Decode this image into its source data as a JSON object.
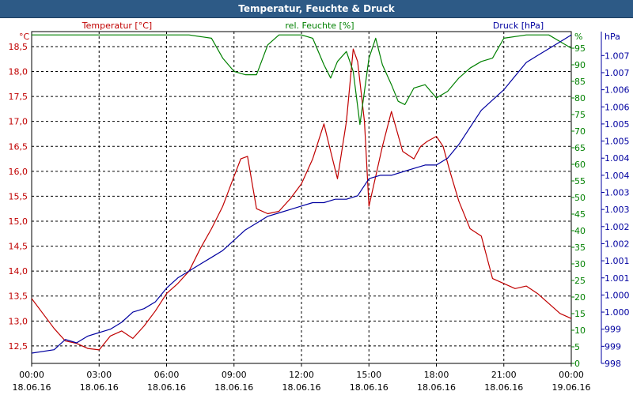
{
  "window": {
    "title": "Temperatur, Feuchte & Druck"
  },
  "colors": {
    "temp": "#c00000",
    "hum": "#008000",
    "press": "#0000a0",
    "grid": "#000000",
    "titlebar": "#2d5a86"
  },
  "chart_data": {
    "type": "line",
    "title": "Temperatur, Feuchte & Druck",
    "grid": true,
    "x_ticks": [
      {
        "time": "00:00",
        "date": "18.06.16"
      },
      {
        "time": "03:00",
        "date": "18.06.16"
      },
      {
        "time": "06:00",
        "date": "18.06.16"
      },
      {
        "time": "09:00",
        "date": "18.06.16"
      },
      {
        "time": "12:00",
        "date": "18.06.16"
      },
      {
        "time": "15:00",
        "date": "18.06.16"
      },
      {
        "time": "18:00",
        "date": "18.06.16"
      },
      {
        "time": "21:00",
        "date": "18.06.16"
      },
      {
        "time": "00:00",
        "date": "19.06.16"
      }
    ],
    "x_range_hours": [
      0,
      24
    ],
    "axes": {
      "temp": {
        "label": "Temperatur [°C]",
        "unit": "°C",
        "range": [
          12.15,
          18.8
        ],
        "ticks": [
          "12,5",
          "13,0",
          "13,5",
          "14,0",
          "14,5",
          "15,0",
          "15,5",
          "16,0",
          "16,5",
          "17,0",
          "17,5",
          "18,0",
          "18,5"
        ],
        "tick_values": [
          12.5,
          13.0,
          13.5,
          14.0,
          14.5,
          15.0,
          15.5,
          16.0,
          16.5,
          17.0,
          17.5,
          18.0,
          18.5
        ]
      },
      "hum": {
        "label": "rel. Feuchte [%]",
        "unit": "%",
        "range": [
          0,
          100
        ],
        "ticks": [
          "0",
          "5",
          "10",
          "15",
          "20",
          "25",
          "30",
          "35",
          "40",
          "45",
          "50",
          "55",
          "60",
          "65",
          "70",
          "75",
          "80",
          "85",
          "90",
          "95"
        ],
        "tick_values": [
          0,
          5,
          10,
          15,
          20,
          25,
          30,
          35,
          40,
          45,
          50,
          55,
          60,
          65,
          70,
          75,
          80,
          85,
          90,
          95
        ]
      },
      "press": {
        "label": "Druck [hPa]",
        "unit": "hPa",
        "range": [
          998.0,
          1007.7
        ],
        "ticks": [
          "998",
          "999",
          "999",
          "1.000",
          "1.000",
          "1.001",
          "1.001",
          "1.002",
          "1.002",
          "1.003",
          "1.003",
          "1.004",
          "1.004",
          "1.005",
          "1.005",
          "1.006",
          "1.006",
          "1.007",
          "1.007"
        ],
        "tick_values": [
          998.0,
          998.5,
          999.0,
          999.5,
          1000.0,
          1000.5,
          1001.0,
          1001.5,
          1002.0,
          1002.5,
          1003.0,
          1003.5,
          1004.0,
          1004.5,
          1005.0,
          1005.5,
          1006.0,
          1006.5,
          1007.0
        ]
      }
    },
    "series": [
      {
        "name": "Temperatur [°C]",
        "axis": "temp",
        "x": [
          0,
          0.5,
          1.0,
          1.5,
          2.0,
          2.5,
          3.0,
          3.5,
          4.0,
          4.5,
          5.0,
          5.5,
          6.0,
          6.5,
          7.0,
          7.5,
          8.0,
          8.5,
          9.0,
          9.3,
          9.6,
          10.0,
          10.5,
          11.0,
          11.5,
          12.0,
          12.5,
          13.0,
          13.3,
          13.6,
          14.0,
          14.3,
          14.5,
          14.8,
          15.0,
          15.3,
          15.6,
          16.0,
          16.5,
          17.0,
          17.3,
          17.6,
          18.0,
          18.3,
          18.6,
          19.0,
          19.5,
          20.0,
          20.5,
          21.0,
          21.5,
          22.0,
          22.5,
          23.0,
          23.5,
          24.0
        ],
        "values": [
          13.45,
          13.15,
          12.85,
          12.6,
          12.55,
          12.45,
          12.42,
          12.7,
          12.8,
          12.65,
          12.9,
          13.2,
          13.55,
          13.75,
          14.0,
          14.45,
          14.85,
          15.3,
          15.9,
          16.25,
          16.3,
          15.25,
          15.15,
          15.2,
          15.45,
          15.75,
          16.25,
          16.95,
          16.4,
          15.85,
          17.0,
          18.45,
          18.2,
          17.0,
          15.3,
          15.9,
          16.5,
          17.2,
          16.4,
          16.25,
          16.5,
          16.6,
          16.7,
          16.5,
          16.0,
          15.4,
          14.85,
          14.7,
          13.85,
          13.75,
          13.65,
          13.7,
          13.55,
          13.35,
          13.15,
          13.05
        ]
      },
      {
        "name": "rel. Feuchte [%]",
        "axis": "hum",
        "x": [
          0,
          1.0,
          2.0,
          3.0,
          4.0,
          5.0,
          6.0,
          7.0,
          8.0,
          8.5,
          9.0,
          9.5,
          10.0,
          10.5,
          11.0,
          11.5,
          12.0,
          12.5,
          13.0,
          13.3,
          13.6,
          14.0,
          14.3,
          14.6,
          15.0,
          15.3,
          15.6,
          16.0,
          16.3,
          16.6,
          17.0,
          17.5,
          18.0,
          18.5,
          19.0,
          19.5,
          20.0,
          20.5,
          21.0,
          22.0,
          23.0,
          23.5,
          24.0
        ],
        "values": [
          99,
          99,
          99,
          99,
          99,
          99,
          99,
          99,
          98,
          92,
          88,
          87,
          87,
          96,
          99,
          99,
          99,
          98,
          90,
          86,
          91,
          94,
          88,
          72,
          92,
          98,
          90,
          84,
          79,
          78,
          83,
          84,
          80,
          82,
          86,
          89,
          91,
          92,
          98,
          99,
          99,
          97,
          95
        ]
      },
      {
        "name": "Druck [hPa]",
        "axis": "press",
        "x": [
          0,
          1.0,
          1.5,
          2.0,
          2.5,
          3.0,
          3.5,
          4.0,
          4.5,
          5.0,
          5.5,
          6.0,
          6.5,
          7.0,
          7.5,
          8.0,
          8.5,
          9.0,
          9.5,
          10.0,
          10.5,
          11.0,
          11.5,
          12.0,
          12.5,
          13.0,
          13.5,
          14.0,
          14.5,
          15.0,
          15.5,
          16.0,
          16.5,
          17.0,
          17.5,
          18.0,
          18.5,
          19.0,
          19.5,
          20.0,
          20.5,
          21.0,
          21.5,
          22.0,
          22.5,
          23.0,
          23.5,
          24.0
        ],
        "values": [
          998.3,
          998.4,
          998.7,
          998.6,
          998.8,
          998.9,
          999.0,
          999.2,
          999.5,
          999.6,
          999.8,
          1000.2,
          1000.5,
          1000.7,
          1000.9,
          1001.1,
          1001.3,
          1001.6,
          1001.9,
          1002.1,
          1002.3,
          1002.4,
          1002.5,
          1002.6,
          1002.7,
          1002.7,
          1002.8,
          1002.8,
          1002.9,
          1003.4,
          1003.5,
          1003.5,
          1003.6,
          1003.7,
          1003.8,
          1003.8,
          1004.0,
          1004.4,
          1004.9,
          1005.4,
          1005.7,
          1006.0,
          1006.4,
          1006.8,
          1007.0,
          1007.2,
          1007.4,
          1007.6
        ]
      }
    ]
  }
}
